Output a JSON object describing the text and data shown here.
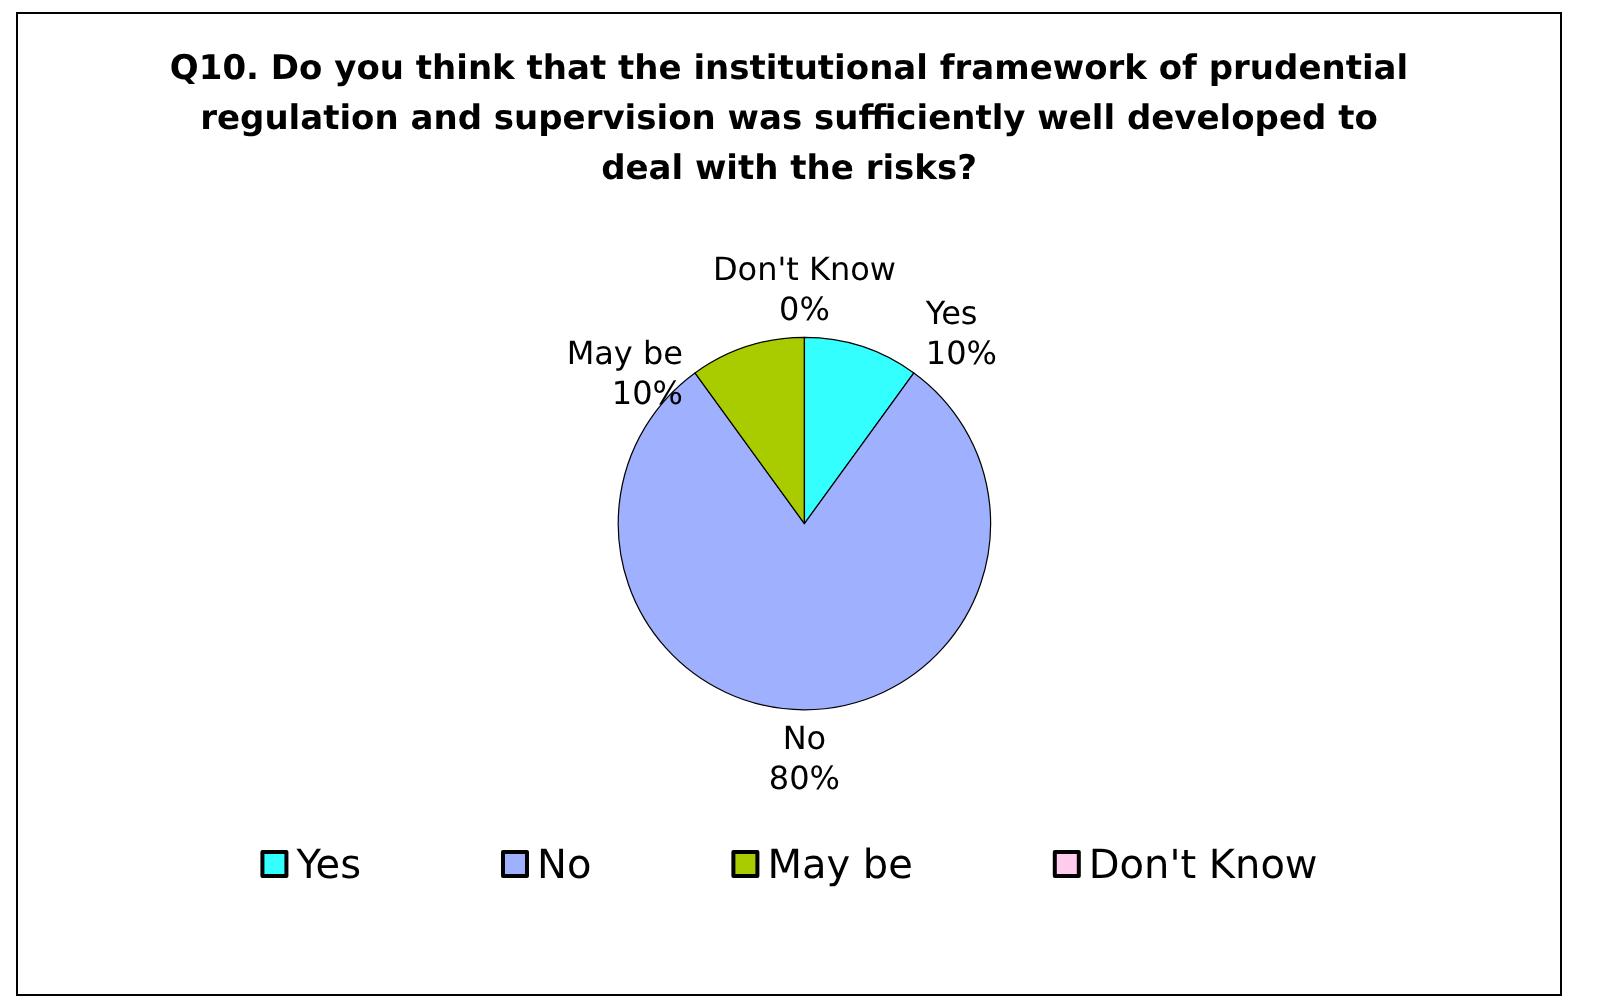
{
  "chart_data": {
    "type": "pie",
    "title": "Q10. Do you think that the institutional framework of prudential regulation and supervision was sufficiently well developed to deal with the risks?",
    "categories": [
      "Yes",
      "No",
      "May be",
      "Don't Know"
    ],
    "values": [
      10,
      80,
      10,
      0
    ],
    "colors": [
      "#33ffff",
      "#9fb0ff",
      "#a8cc00",
      "#ffccee"
    ],
    "value_labels": [
      "10%",
      "80%",
      "10%",
      "0%"
    ],
    "legend": "bottom"
  }
}
